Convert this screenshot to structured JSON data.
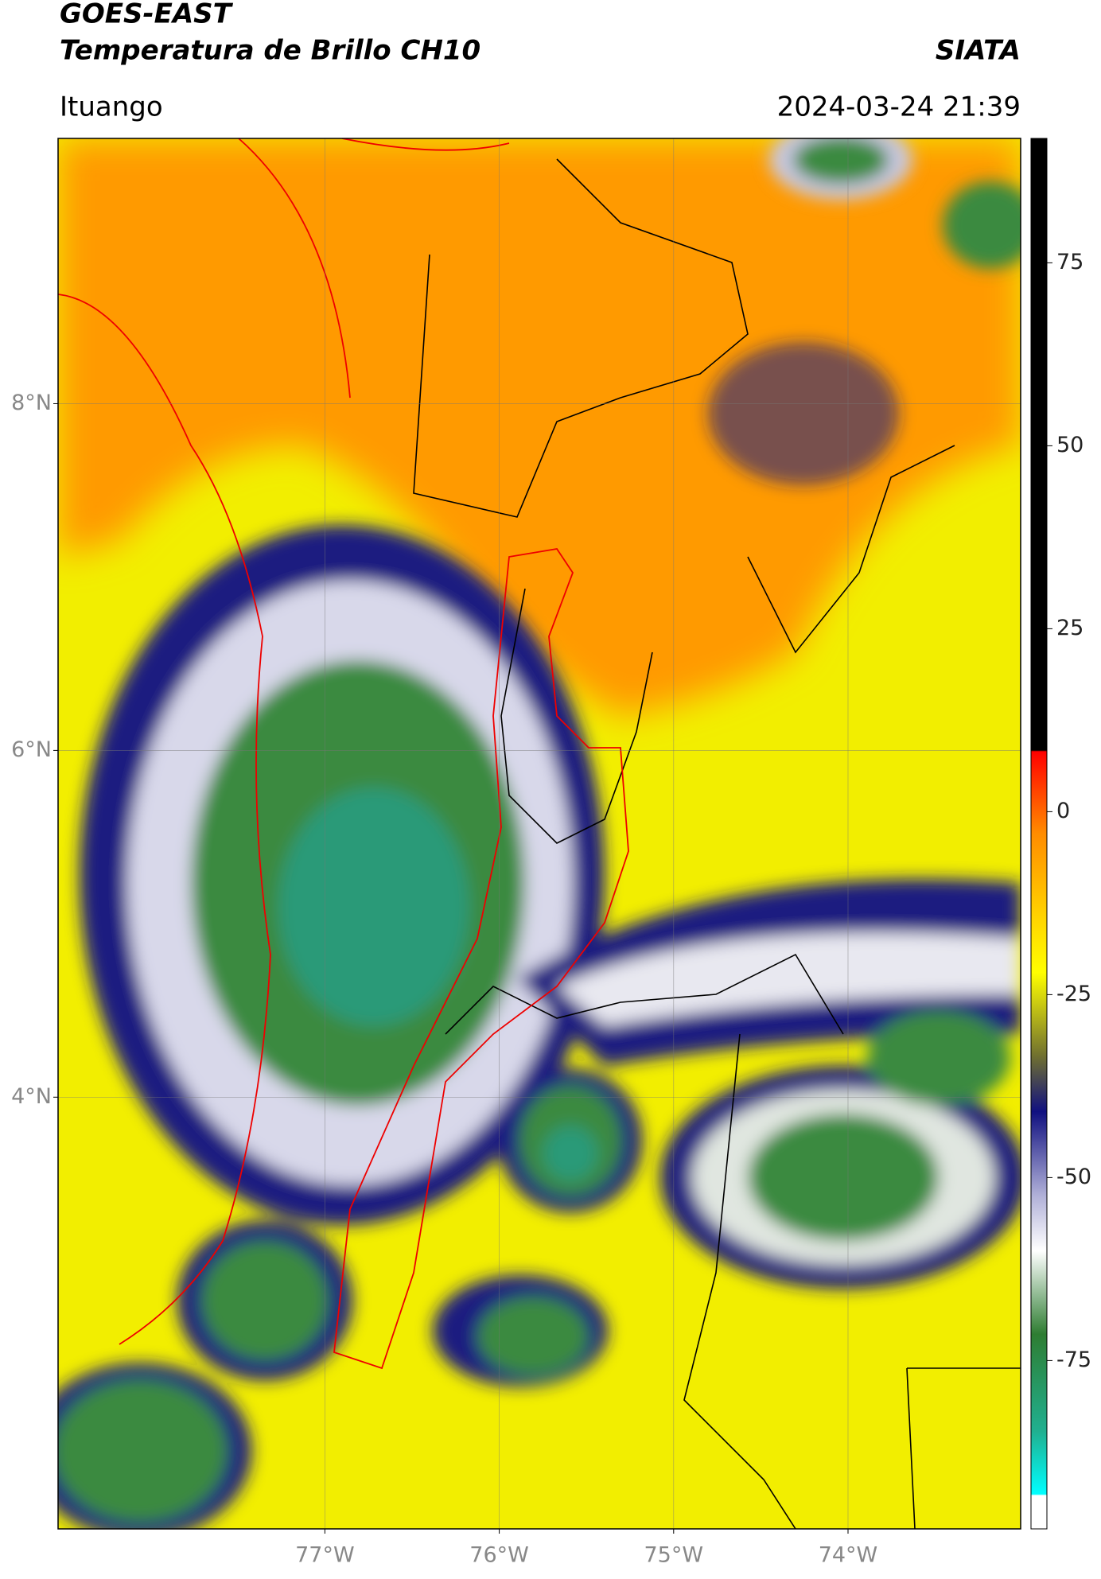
{
  "header": {
    "title": "GOES-EAST",
    "subtitle": "Temperatura de Brillo CH10",
    "source": "SIATA",
    "location": "Ituango",
    "datetime": "2024-03-24 21:39"
  },
  "map": {
    "lat_range": [
      1.51,
      9.53
    ],
    "lon_range": [
      -78.53,
      -73.01
    ],
    "lat_ticks": [
      {
        "value": 8,
        "label": "8°N"
      },
      {
        "value": 6,
        "label": "6°N"
      },
      {
        "value": 4,
        "label": "4°N"
      }
    ],
    "lon_ticks": [
      {
        "value": -77,
        "label": "77°W"
      },
      {
        "value": -76,
        "label": "76°W"
      },
      {
        "value": -75,
        "label": "75°W"
      },
      {
        "value": -74,
        "label": "74°W"
      }
    ]
  },
  "colorbar": {
    "range": [
      -98,
      92
    ],
    "ticks": [
      75,
      50,
      25,
      0,
      -25,
      -50,
      -75
    ]
  }
}
